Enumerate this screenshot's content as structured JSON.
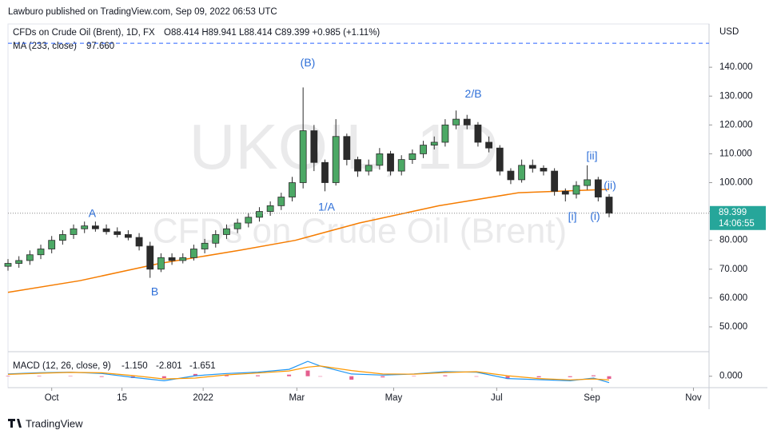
{
  "header": {
    "publisher": "Lawburo published on TradingView.com, Sep 09, 2022 06:53 UTC",
    "brand": "TradingView"
  },
  "chart_data": {
    "type": "candlestick",
    "title": "CFDs on Crude Oil (Brent), 1D, FX",
    "ohlc_legend": "O88.414 H89.941 L88.414 C89.399 +0.985 (+1.11%)",
    "watermark": "UKOIL, 1D",
    "watermark_sub": "CFDs on Crude Oil (Brent)",
    "currency": "USD",
    "up_color": "#4ca865",
    "down_color": "#2b2b2b",
    "x": [
      0,
      7,
      14,
      21,
      28,
      35,
      42,
      49,
      56,
      63,
      70,
      77,
      84,
      91,
      98,
      105,
      112,
      119,
      126,
      133,
      140,
      147,
      154,
      161,
      168,
      175,
      182,
      189,
      196,
      203,
      210,
      217,
      224,
      231,
      238,
      245,
      252,
      259,
      266,
      273,
      280,
      287,
      294,
      301,
      308,
      315,
      322,
      329,
      336,
      343,
      350,
      357,
      364,
      371,
      378,
      385
    ],
    "open": [
      71,
      72,
      73,
      75,
      77,
      80,
      82,
      84,
      85,
      84,
      83,
      82,
      81,
      78,
      70,
      74,
      73,
      74,
      77,
      79,
      82,
      84,
      86,
      88,
      90,
      92,
      95,
      100,
      118,
      107,
      100,
      116,
      108,
      104,
      106,
      110,
      104,
      108,
      110,
      113,
      114,
      120,
      122,
      120,
      114,
      112,
      104,
      101,
      106,
      105,
      104,
      97,
      96,
      99,
      101,
      95
    ],
    "high": [
      73.5,
      74.5,
      76.5,
      78.5,
      81.5,
      83.5,
      85.5,
      86.5,
      86.5,
      85.5,
      84.5,
      83.5,
      82.5,
      79.5,
      75.5,
      75.5,
      75.5,
      78.5,
      80.5,
      83.5,
      85.5,
      87.5,
      89.5,
      91.5,
      93.5,
      96.5,
      102,
      133,
      120,
      108,
      122,
      117,
      109,
      108,
      112,
      111,
      109.5,
      111.5,
      114.5,
      116,
      122,
      125,
      123.5,
      121,
      116,
      113,
      105,
      108,
      108,
      106,
      105,
      98,
      100.5,
      106,
      102,
      96
    ],
    "low": [
      69.5,
      70.5,
      71.5,
      73.5,
      75.5,
      78.5,
      80.5,
      82.5,
      83,
      82,
      81,
      80,
      76.5,
      67,
      69,
      71.5,
      72,
      73,
      75.5,
      77.5,
      80.5,
      82.5,
      84.5,
      86.5,
      88.5,
      90.5,
      93.5,
      98,
      104,
      97,
      99,
      106,
      102,
      102.5,
      104.5,
      102.5,
      102.5,
      106.5,
      108.5,
      111.5,
      112.5,
      118.5,
      118.5,
      112.5,
      110.5,
      102.5,
      99.5,
      100,
      103.5,
      102.5,
      95.5,
      93.5,
      94.5,
      97.5,
      93.5,
      88
    ],
    "close": [
      72,
      73,
      75,
      77,
      80,
      82,
      84,
      85,
      84,
      83,
      82,
      81,
      78,
      70,
      74,
      73,
      74,
      77,
      79,
      82,
      84,
      86,
      88,
      90,
      92,
      95,
      100,
      118,
      107,
      100,
      116,
      108,
      104,
      106,
      110,
      104,
      108,
      110,
      113,
      114,
      120,
      122,
      120,
      114,
      112,
      104,
      101,
      106,
      105,
      104,
      97,
      96,
      99,
      101,
      95,
      89.399
    ],
    "last_price": 89.399,
    "last_color": "#26a69a",
    "countdown": "14:06:55",
    "ma": {
      "name": "MA (233, close)",
      "color": "#f57c00",
      "last": {
        "value": 97.66,
        "label": "97.660"
      },
      "x": [
        0,
        46,
        97,
        148,
        184,
        225,
        276,
        327,
        385
      ],
      "values": [
        62,
        66,
        72,
        76.5,
        80,
        86,
        92,
        96.5,
        97.66
      ]
    },
    "hline": {
      "value": 148.3,
      "color": "#2962ff"
    },
    "annotations": [
      {
        "text": "(B)",
        "x": 192,
        "y": 141.4
      },
      {
        "text": "1/A",
        "x": 204,
        "y": 91.3
      },
      {
        "text": "2/B",
        "x": 298,
        "y": 130.6
      },
      {
        "text": "A",
        "x": 54,
        "y": 89.1
      },
      {
        "text": "B",
        "x": 94,
        "y": 61.9
      },
      {
        "text": "[ii]",
        "x": 374,
        "y": 109
      },
      {
        "text": "[i]",
        "x": 361.5,
        "y": 88
      },
      {
        "text": "(ii)",
        "x": 385.5,
        "y": 98.8
      },
      {
        "text": "(i)",
        "x": 376,
        "y": 88.2
      }
    ],
    "xlim": [
      0,
      449
    ],
    "xticks": [
      {
        "value": 28,
        "label": "Oct"
      },
      {
        "value": 73,
        "label": "15"
      },
      {
        "value": 125,
        "label": "2022"
      },
      {
        "value": 185,
        "label": "Mar"
      },
      {
        "value": 247,
        "label": "May"
      },
      {
        "value": 313,
        "label": "Jul"
      },
      {
        "value": 374,
        "label": "Sep"
      },
      {
        "value": 439,
        "label": "Nov"
      }
    ],
    "ylim": [
      41.4,
      155
    ],
    "yticks": [
      {
        "value": 50,
        "label": "50.000"
      },
      {
        "value": 60,
        "label": "60.000"
      },
      {
        "value": 70,
        "label": "70.000"
      },
      {
        "value": 80,
        "label": "80.000"
      },
      {
        "value": 90,
        "label": "90.000"
      },
      {
        "value": 100,
        "label": "100.000"
      },
      {
        "value": 110,
        "label": "110.000"
      },
      {
        "value": 120,
        "label": "120.000"
      },
      {
        "value": 130,
        "label": "130.000"
      },
      {
        "value": 140,
        "label": "140.000"
      }
    ],
    "macd": {
      "name": "MACD (12, 26, close, 9)",
      "x": [
        0,
        20,
        40,
        60,
        80,
        100,
        120,
        140,
        160,
        180,
        192,
        200,
        220,
        240,
        260,
        280,
        300,
        320,
        340,
        360,
        375,
        385
      ],
      "macd": {
        "color": "#2196f3",
        "label": "-2.801",
        "values": [
          1.0,
          1.5,
          1.8,
          1.2,
          -0.5,
          -2.0,
          0.2,
          1.2,
          1.8,
          3.0,
          6.5,
          4.5,
          1.0,
          0.5,
          1.0,
          2.0,
          1.8,
          -1.0,
          -1.5,
          -2.0,
          -0.8,
          -2.801
        ]
      },
      "signal": {
        "color": "#ff9800",
        "label": "-1.651",
        "values": [
          0.8,
          1.3,
          1.7,
          1.5,
          0.3,
          -1.2,
          -0.8,
          0.6,
          1.4,
          2.3,
          4.0,
          4.5,
          2.5,
          1.0,
          0.9,
          1.6,
          2.0,
          0.2,
          -1.0,
          -1.6,
          -1.2,
          -1.651
        ]
      },
      "histogram": {
        "color": "#d81b60",
        "label": "-1.150",
        "values": [
          0.2,
          0.2,
          0.1,
          -0.3,
          -0.8,
          -0.8,
          1.0,
          0.6,
          0.4,
          0.7,
          2.5,
          0,
          -1.5,
          -0.5,
          0.1,
          0.4,
          -0.2,
          -1.2,
          -0.5,
          -0.4,
          0.4,
          -1.15
        ]
      },
      "ylim": [
        -5,
        9
      ],
      "yticks": [
        {
          "value": 0,
          "label": "0.000"
        }
      ]
    }
  }
}
